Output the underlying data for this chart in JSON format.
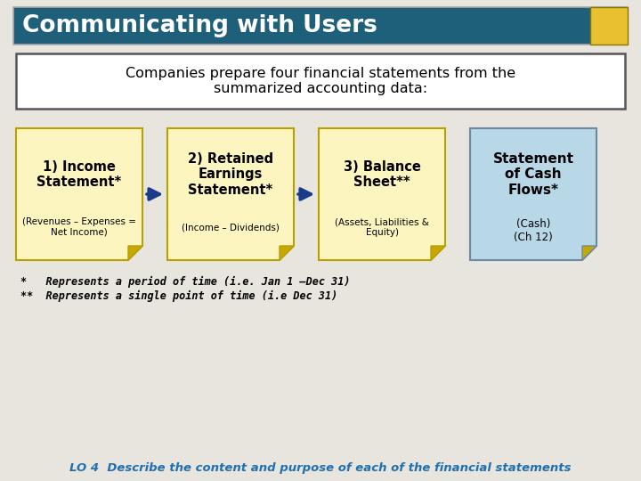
{
  "title": "Communicating with Users",
  "title_bg": "#1e5f7a",
  "title_fg": "#ffffff",
  "title_accent": "#e8c030",
  "subtitle": "Companies prepare four financial statements from the\nsummarized accounting data:",
  "bg_color": "#e8e4de",
  "box_color": "#fdf5c0",
  "box_border": "#b8a000",
  "arrow_color": "#1a3a8a",
  "cash_box_color": "#b8d8e8",
  "cash_box_border": "#6a8aa0",
  "cards": [
    {
      "main": "1) Income\nStatement*",
      "sub": "(Revenues – Expenses =\nNet Income)"
    },
    {
      "main": "2) Retained\nEarnings\nStatement*",
      "sub": "(Income – Dividends)"
    },
    {
      "main": "3) Balance\nSheet**",
      "sub": "(Assets, Liabilities &\nEquity)"
    }
  ],
  "cash_main": "Statement\nof Cash\nFlows*",
  "cash_sub": "(Cash)\n(Ch 12)",
  "footnote1": "*   Represents a period of time (i.e. Jan 1 –Dec 31)",
  "footnote2": "**  Represents a single point of time (i.e Dec 31)",
  "bottom_text": "LO 4  Describe the content and purpose of each of the financial statements",
  "bottom_color": "#2070b0"
}
